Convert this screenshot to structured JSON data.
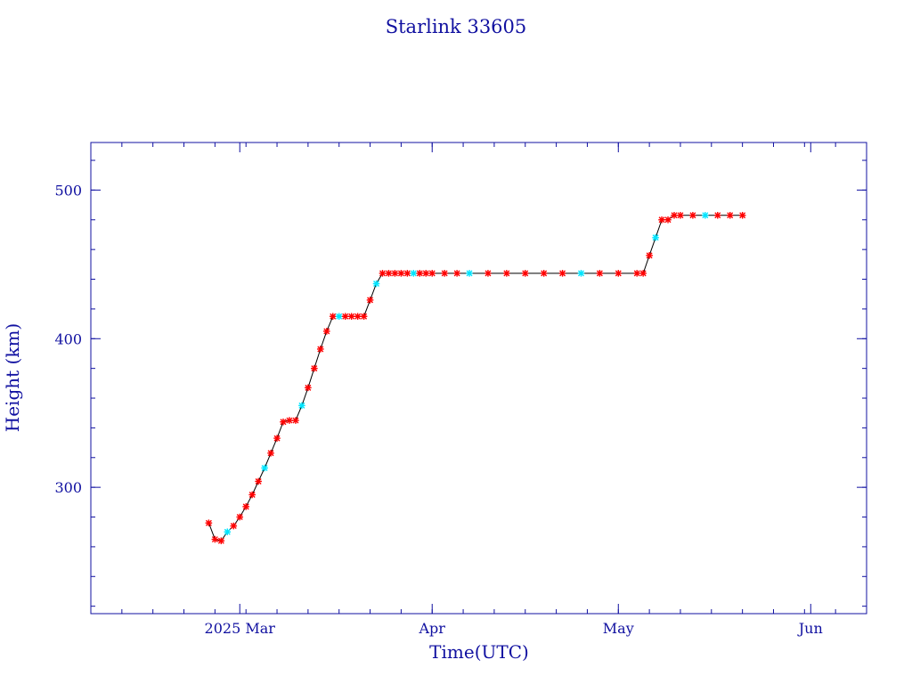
{
  "chart_data": {
    "type": "scatter",
    "title": "Starlink 33605",
    "xlabel": "Time(UTC)",
    "ylabel": "Height (km)",
    "xlim": [
      "2025-02-05",
      "2025-06-10"
    ],
    "ylim": [
      215,
      532
    ],
    "x_ticks": [
      {
        "date": "2025-03-01",
        "label": "2025 Mar"
      },
      {
        "date": "2025-04-01",
        "label": "Apr"
      },
      {
        "date": "2025-05-01",
        "label": "May"
      },
      {
        "date": "2025-06-01",
        "label": "Jun"
      }
    ],
    "y_ticks": [
      {
        "value": 300,
        "label": "300"
      },
      {
        "value": 400,
        "label": "400"
      },
      {
        "value": 500,
        "label": "500"
      }
    ],
    "grid": false,
    "legend": "none",
    "colors": {
      "axis": "#1010a0",
      "line": "#000000",
      "marker_primary": "#ff0000",
      "marker_secondary": "#00e5ff"
    },
    "series": [
      {
        "values_note": "",
        "x": [
          "2025-02-24",
          "2025-02-25",
          "2025-02-26",
          "2025-02-27",
          "2025-02-28",
          "2025-03-01",
          "2025-03-02",
          "2025-03-03",
          "2025-03-04",
          "2025-03-05",
          "2025-03-06",
          "2025-03-07",
          "2025-03-08",
          "2025-03-09",
          "2025-03-10",
          "2025-03-11",
          "2025-03-12",
          "2025-03-13",
          "2025-03-14",
          "2025-03-15",
          "2025-03-16",
          "2025-03-17",
          "2025-03-18",
          "2025-03-19",
          "2025-03-20",
          "2025-03-21",
          "2025-03-22",
          "2025-03-23",
          "2025-03-24",
          "2025-03-25",
          "2025-03-26",
          "2025-03-27",
          "2025-03-28",
          "2025-03-29",
          "2025-03-30",
          "2025-03-31",
          "2025-04-01",
          "2025-04-03",
          "2025-04-05",
          "2025-04-07",
          "2025-04-10",
          "2025-04-13",
          "2025-04-16",
          "2025-04-19",
          "2025-04-22",
          "2025-04-25",
          "2025-04-28",
          "2025-05-01",
          "2025-05-04",
          "2025-05-05",
          "2025-05-06",
          "2025-05-07",
          "2025-05-08",
          "2025-05-09",
          "2025-05-10",
          "2025-05-11",
          "2025-05-13",
          "2025-05-15",
          "2025-05-17",
          "2025-05-19",
          "2025-05-21"
        ],
        "values": [
          276,
          265,
          264,
          270,
          274,
          280,
          287,
          295,
          304,
          313,
          323,
          333,
          344,
          345,
          345,
          355,
          367,
          380,
          393,
          405,
          415,
          415,
          415,
          415,
          415,
          415,
          426,
          437,
          444,
          444,
          444,
          444,
          444,
          444,
          444,
          444,
          444,
          444,
          444,
          444,
          444,
          444,
          444,
          444,
          444,
          444,
          444,
          444,
          444,
          444,
          456,
          468,
          480,
          480,
          483,
          483,
          483,
          483,
          483,
          483,
          483
        ]
      }
    ]
  }
}
